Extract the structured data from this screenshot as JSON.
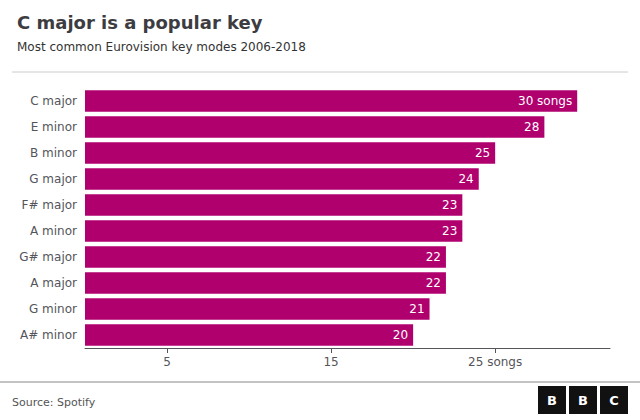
{
  "chart_data": {
    "type": "bar",
    "orientation": "horizontal",
    "title": "C major is a popular key",
    "subtitle": "Most common Eurovision key modes 2006-2018",
    "source": "Source: Spotify",
    "logo": [
      "B",
      "B",
      "C"
    ],
    "categories": [
      "C major",
      "E minor",
      "B minor",
      "G major",
      "F# major",
      "A minor",
      "G# major",
      "A major",
      "G minor",
      "A# minor"
    ],
    "values": [
      30,
      28,
      25,
      24,
      23,
      23,
      22,
      22,
      21,
      20
    ],
    "value_labels": [
      "30 songs",
      "28",
      "25",
      "24",
      "23",
      "23",
      "22",
      "22",
      "21",
      "20"
    ],
    "data_labels": true,
    "color": "#b0006e",
    "xlim": [
      0,
      32
    ],
    "xticks": [
      5,
      15,
      {
        "value": 25,
        "label": "25 songs"
      }
    ],
    "grid": false
  }
}
